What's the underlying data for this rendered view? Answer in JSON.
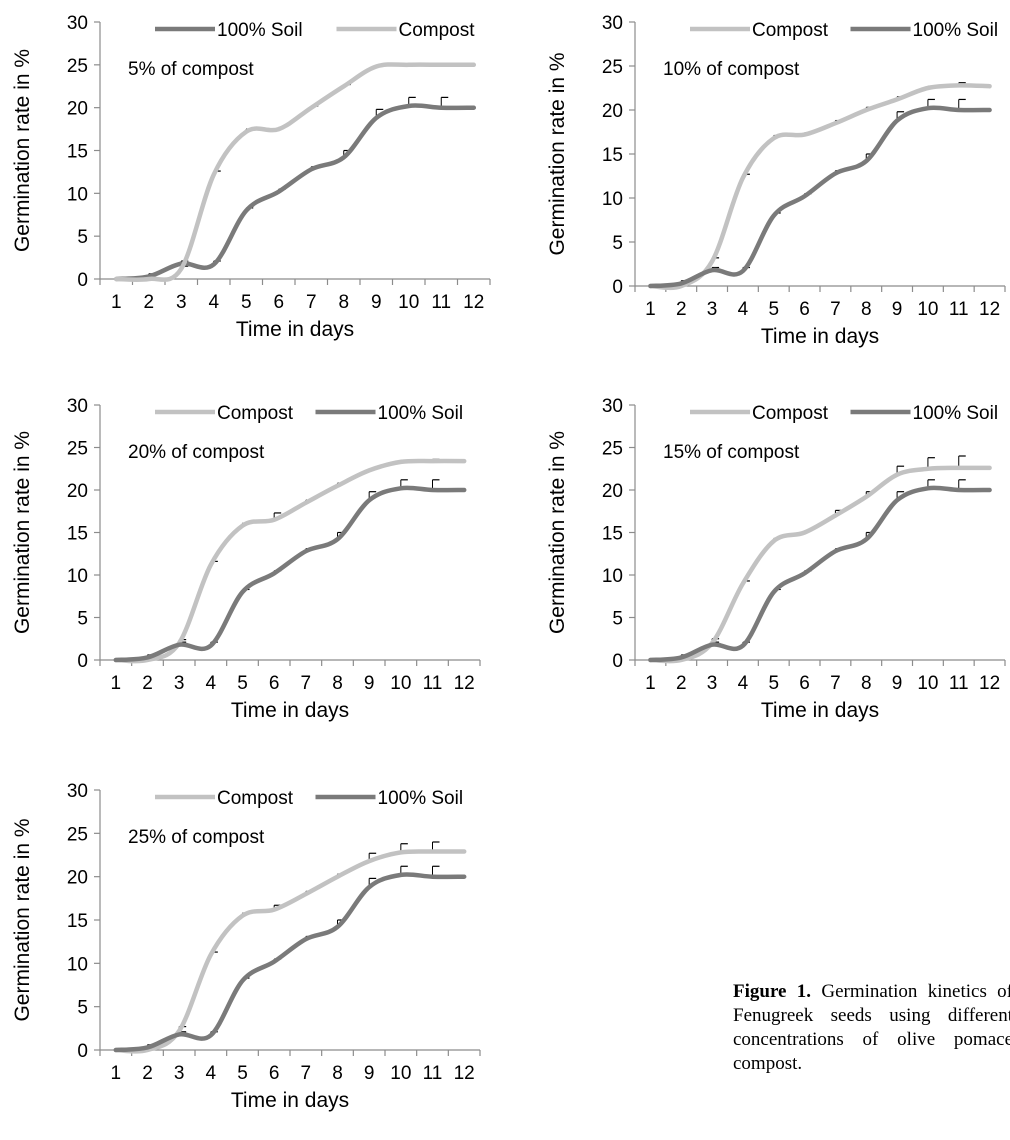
{
  "caption": {
    "label": "Figure 1.",
    "text": " Germination kinetics of Fenugreek seeds using different concentrations of olive pomace compost."
  },
  "colors": {
    "soil": "#7a7a7a",
    "compost": "#c2c2c2",
    "axis": "#8c8c8c"
  },
  "chart_data": [
    {
      "type": "line",
      "annotation": "5% of compost",
      "xlabel": "Time in days",
      "ylabel": "Germination rate in %",
      "ylim": [
        0,
        30
      ],
      "yticks": [
        "0",
        "5",
        "10",
        "15",
        "20",
        "25",
        "30"
      ],
      "categories": [
        "1",
        "2",
        "3",
        "4",
        "5",
        "6",
        "7",
        "8",
        "9",
        "10",
        "11",
        "12"
      ],
      "legend_position": "top",
      "series": [
        {
          "name": "100% Soil",
          "style": "soil",
          "values": [
            0,
            0.3,
            1.8,
            1.7,
            8.0,
            10.2,
            12.8,
            14.2,
            18.8,
            20.2,
            20.0,
            20.0
          ],
          "err": [
            0,
            0.3,
            0.3,
            0.4,
            0.3,
            0.3,
            0.3,
            0.8,
            1.0,
            1.0,
            1.2,
            0
          ]
        },
        {
          "name": "Compost",
          "style": "compost",
          "values": [
            0,
            0,
            1.2,
            12.2,
            17.2,
            17.5,
            20.0,
            22.5,
            24.8,
            25.0,
            25.0,
            25.0
          ],
          "err": [
            0,
            0,
            0.3,
            0.4,
            0.3,
            0.2,
            0.2,
            0.2,
            0,
            0,
            0,
            0
          ]
        }
      ]
    },
    {
      "type": "line",
      "annotation": "10% of compost",
      "xlabel": "Time in days",
      "ylabel": "Germination rate in %",
      "ylim": [
        0,
        30
      ],
      "yticks": [
        "0",
        "5",
        "10",
        "15",
        "20",
        "25",
        "30"
      ],
      "categories": [
        "1",
        "2",
        "3",
        "4",
        "5",
        "6",
        "7",
        "8",
        "9",
        "10",
        "11",
        "12"
      ],
      "legend_position": "top",
      "series": [
        {
          "name": "Compost",
          "style": "compost",
          "values": [
            0,
            0,
            2.8,
            12.3,
            16.8,
            17.2,
            18.5,
            20.0,
            21.2,
            22.5,
            22.8,
            22.7
          ],
          "err": [
            0,
            0,
            0.4,
            0.4,
            0.3,
            0.2,
            0.3,
            0.3,
            0.3,
            0.2,
            0.3,
            0
          ]
        },
        {
          "name": "100% Soil",
          "style": "soil",
          "values": [
            0,
            0.3,
            1.8,
            1.7,
            8.0,
            10.2,
            12.8,
            14.2,
            18.8,
            20.2,
            20.0,
            20.0
          ],
          "err": [
            0,
            0.3,
            0.3,
            0.4,
            0.3,
            0.3,
            0.3,
            0.8,
            1.0,
            1.0,
            1.2,
            0
          ]
        }
      ]
    },
    {
      "type": "line",
      "annotation": "20% of compost",
      "xlabel": "Time in days",
      "ylabel": "Germination rate in %",
      "ylim": [
        0,
        30
      ],
      "yticks": [
        "0",
        "5",
        "10",
        "15",
        "20",
        "25",
        "30"
      ],
      "categories": [
        "1",
        "2",
        "3",
        "4",
        "5",
        "6",
        "7",
        "8",
        "9",
        "10",
        "11",
        "12"
      ],
      "legend_position": "top",
      "series": [
        {
          "name": "Compost",
          "style": "compost",
          "values": [
            0,
            0,
            2.0,
            11.2,
            15.8,
            16.5,
            18.5,
            20.5,
            22.3,
            23.3,
            23.4,
            23.4
          ],
          "err": [
            0,
            0,
            0.4,
            0.4,
            0.3,
            0.8,
            0.3,
            0.3,
            0.2,
            0.2,
            0.2,
            0
          ]
        },
        {
          "name": "100% Soil",
          "style": "soil",
          "values": [
            0,
            0.3,
            1.8,
            1.7,
            8.0,
            10.2,
            12.8,
            14.2,
            18.8,
            20.2,
            20.0,
            20.0
          ],
          "err": [
            0,
            0.3,
            0.3,
            0.4,
            0.3,
            0.3,
            0.3,
            0.8,
            1.0,
            1.0,
            1.2,
            0
          ]
        }
      ]
    },
    {
      "type": "line",
      "annotation": "15% of compost",
      "xlabel": "Time in days",
      "ylabel": "Germination rate in %",
      "ylim": [
        0,
        30
      ],
      "yticks": [
        "0",
        "5",
        "10",
        "15",
        "20",
        "25",
        "30"
      ],
      "categories": [
        "1",
        "2",
        "3",
        "4",
        "5",
        "6",
        "7",
        "8",
        "9",
        "10",
        "11",
        "12"
      ],
      "legend_position": "top",
      "series": [
        {
          "name": "Compost",
          "style": "compost",
          "values": [
            0,
            0,
            2.0,
            9.0,
            14.0,
            15.0,
            17.0,
            19.2,
            21.8,
            22.5,
            22.6,
            22.6
          ],
          "err": [
            0,
            0,
            0.5,
            0.3,
            0.3,
            0.2,
            0.6,
            0.6,
            1.0,
            1.3,
            1.4,
            0
          ]
        },
        {
          "name": "100% Soil",
          "style": "soil",
          "values": [
            0,
            0.3,
            1.8,
            1.7,
            8.0,
            10.2,
            12.8,
            14.2,
            18.8,
            20.2,
            20.0,
            20.0
          ],
          "err": [
            0,
            0.3,
            0.3,
            0.4,
            0.3,
            0.3,
            0.3,
            0.8,
            1.0,
            1.0,
            1.2,
            0
          ]
        }
      ]
    },
    {
      "type": "line",
      "annotation": "25% of compost",
      "xlabel": "Time in days",
      "ylabel": "Germination rate in %",
      "ylim": [
        0,
        30
      ],
      "yticks": [
        "0",
        "5",
        "10",
        "15",
        "20",
        "25",
        "30"
      ],
      "categories": [
        "1",
        "2",
        "3",
        "4",
        "5",
        "6",
        "7",
        "8",
        "9",
        "10",
        "11",
        "12"
      ],
      "legend_position": "top",
      "series": [
        {
          "name": "Compost",
          "style": "compost",
          "values": [
            0,
            0,
            2.2,
            11.0,
            15.5,
            16.2,
            18.0,
            20.0,
            21.8,
            22.8,
            22.9,
            22.9
          ],
          "err": [
            0,
            0,
            0.5,
            0.3,
            0.3,
            0.5,
            0.3,
            0.3,
            0.9,
            1.0,
            1.1,
            0
          ]
        },
        {
          "name": "100% Soil",
          "style": "soil",
          "values": [
            0,
            0.3,
            1.8,
            1.7,
            8.0,
            10.2,
            12.8,
            14.2,
            18.8,
            20.2,
            20.0,
            20.0
          ],
          "err": [
            0,
            0.3,
            0.3,
            0.4,
            0.3,
            0.3,
            0.3,
            0.8,
            1.0,
            1.0,
            1.2,
            0
          ]
        }
      ]
    }
  ]
}
